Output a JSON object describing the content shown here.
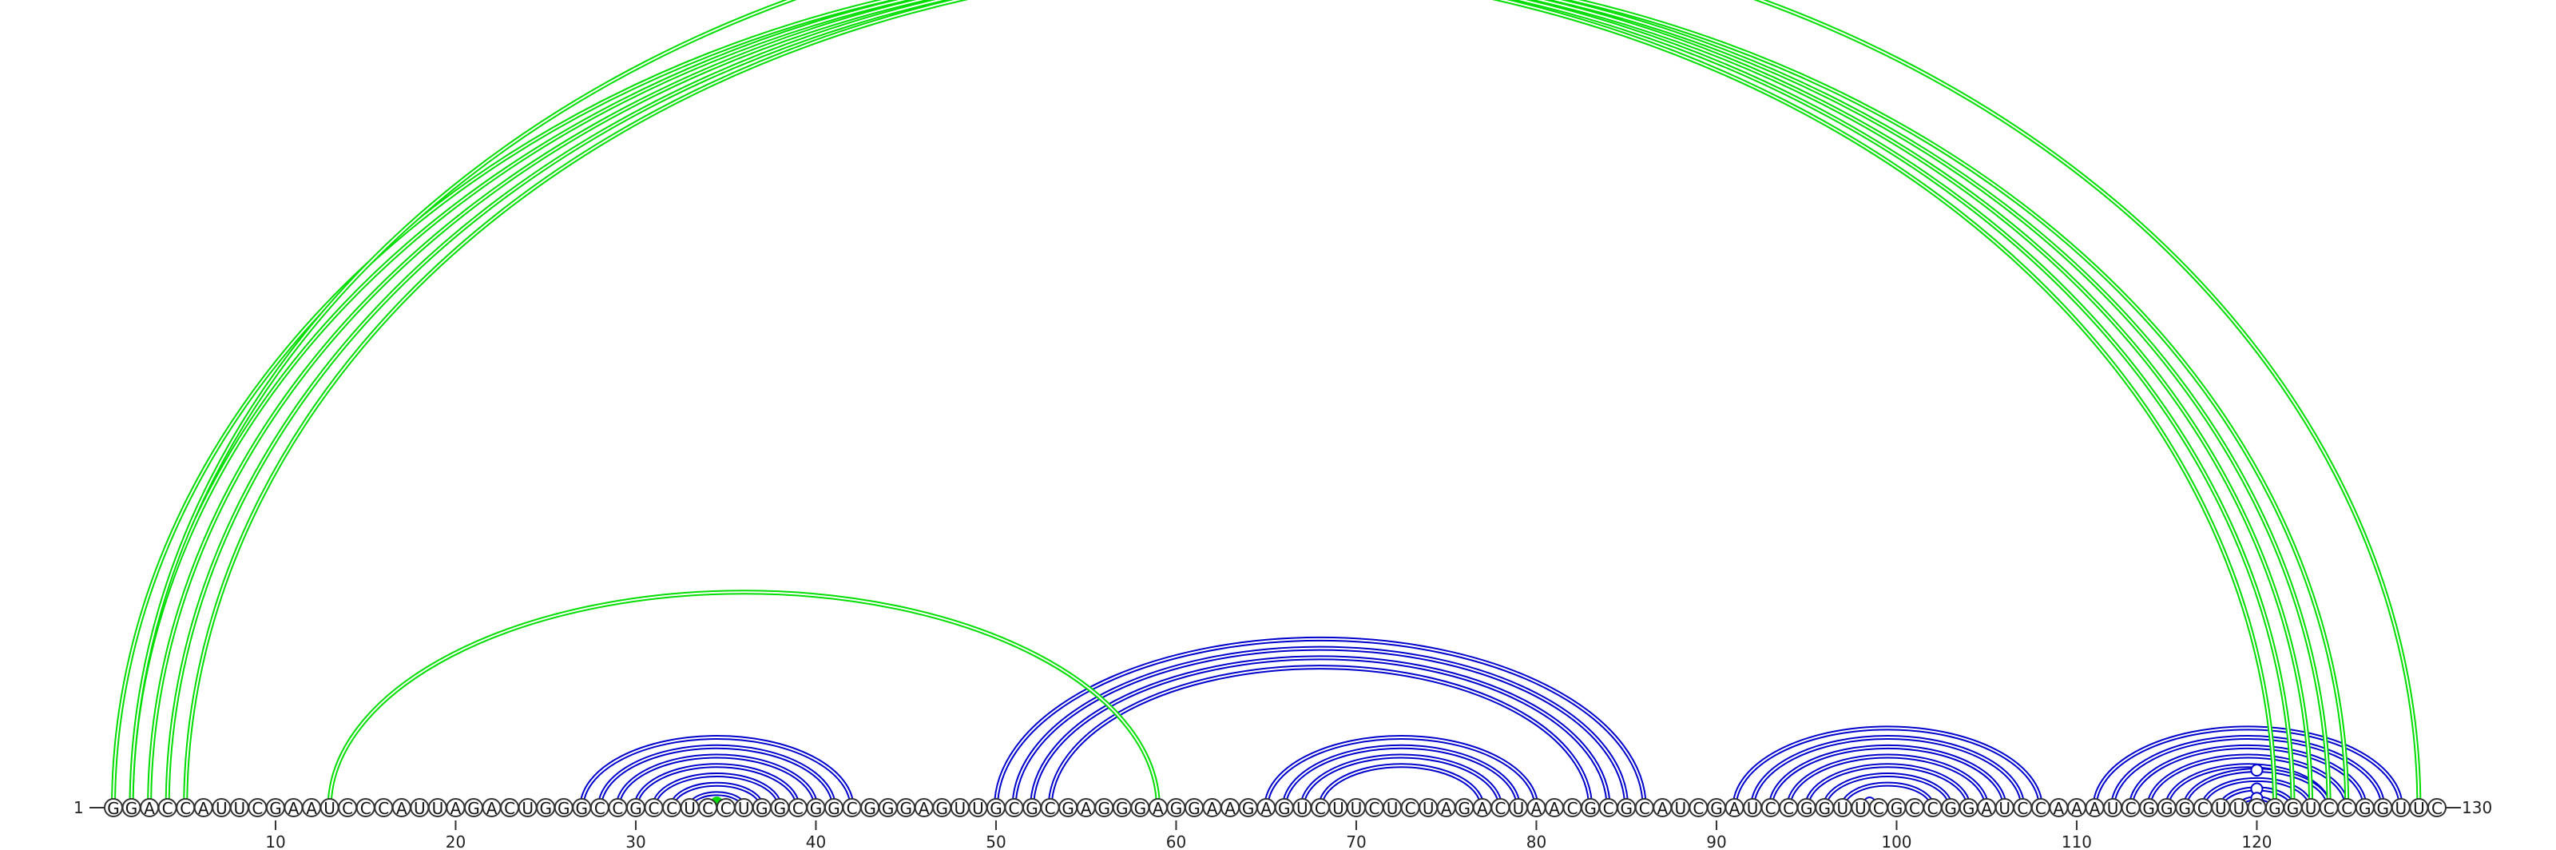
{
  "diagram": {
    "type": "rna-arc-diagram",
    "sequence": "GGACCAUUCGAAUCCCAUUAGACUGGGCCGCCUCCUGGCGGCGGGAGUUGCGCGAGGGAGGAAGAGUCUUCUCUAGACUAACGCGCAUCGAUCCGGUUCGCCGGAUCCAAAUCGGGCUUCGGUCCGGUUC",
    "start_label": "1",
    "end_label": "130",
    "ticks": [
      10,
      20,
      30,
      40,
      50,
      60,
      70,
      80,
      90,
      100,
      110,
      120
    ],
    "colors": {
      "primary": "#0000cc",
      "secondary": "#00dd00"
    },
    "helices": [
      {
        "color": "primary",
        "pairs": [
          [
            27,
            42
          ],
          [
            28,
            41
          ],
          [
            29,
            40
          ],
          [
            30,
            39
          ],
          [
            31,
            38
          ],
          [
            32,
            37
          ],
          [
            33,
            36
          ]
        ]
      },
      {
        "color": "secondary",
        "pairs": [
          [
            34,
            35
          ]
        ],
        "marker": "filled"
      },
      {
        "color": "primary",
        "pairs": [
          [
            50,
            86
          ],
          [
            51,
            85
          ],
          [
            52,
            84
          ],
          [
            53,
            83
          ]
        ]
      },
      {
        "color": "primary",
        "pairs": [
          [
            65,
            80
          ],
          [
            66,
            79
          ],
          [
            67,
            78
          ],
          [
            68,
            77
          ]
        ]
      },
      {
        "color": "primary",
        "pairs": [
          [
            91,
            108
          ],
          [
            92,
            107
          ],
          [
            93,
            106
          ],
          [
            94,
            105
          ],
          [
            95,
            104
          ],
          [
            96,
            103
          ],
          [
            97,
            102
          ]
        ]
      },
      {
        "color": "primary",
        "pairs": [
          [
            98,
            99
          ]
        ],
        "marker": "open"
      },
      {
        "color": "primary",
        "pairs": [
          [
            111,
            128
          ],
          [
            112,
            127
          ],
          [
            113,
            126
          ],
          [
            114,
            125
          ],
          [
            115,
            124
          ]
        ]
      },
      {
        "color": "primary",
        "pairs": [
          [
            116,
            124
          ]
        ],
        "marker": "open"
      },
      {
        "color": "primary",
        "pairs": [
          [
            117,
            123
          ],
          [
            118,
            122
          ],
          [
            119,
            121
          ]
        ]
      },
      {
        "color": "primary",
        "pairs": [
          [
            118,
            122
          ]
        ],
        "marker": "open"
      },
      {
        "color": "primary",
        "pairs": [
          [
            119,
            121
          ]
        ],
        "marker": "open"
      },
      {
        "color": "secondary",
        "pairs": [
          [
            13,
            59
          ]
        ]
      },
      {
        "color": "secondary",
        "pairs": [
          [
            1,
            121
          ],
          [
            2,
            122
          ],
          [
            3,
            123
          ],
          [
            4,
            124
          ],
          [
            5,
            125
          ]
        ]
      },
      {
        "color": "secondary",
        "pairs": [
          [
            2,
            129
          ]
        ],
        "marker": "open"
      }
    ]
  }
}
